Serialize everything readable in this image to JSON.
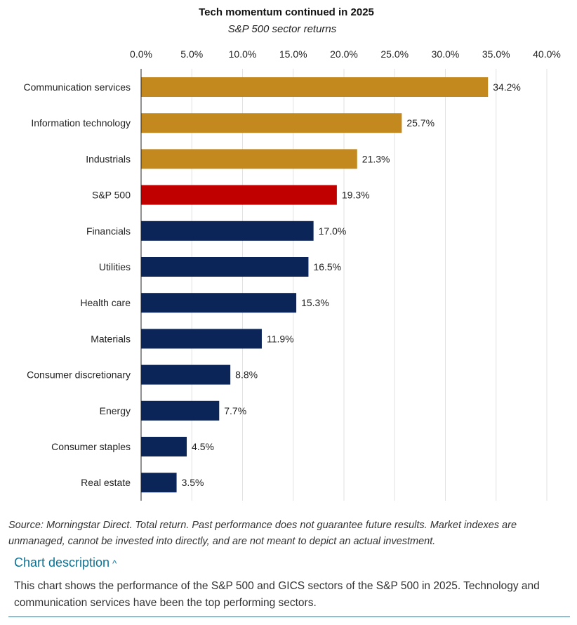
{
  "chart_data": {
    "type": "bar",
    "orientation": "horizontal",
    "title": "Tech momentum continued in 2025",
    "subtitle": "S&P 500 sector returns",
    "xlim": [
      0,
      40
    ],
    "xticks": [
      "0.0%",
      "5.0%",
      "10.0%",
      "15.0%",
      "20.0%",
      "25.0%",
      "30.0%",
      "35.0%",
      "40.0%"
    ],
    "grid": true,
    "categories": [
      "Communication services",
      "Information technology",
      "Industrials",
      "S&P 500",
      "Financials",
      "Utilities",
      "Health care",
      "Materials",
      "Consumer discretionary",
      "Energy",
      "Consumer staples",
      "Real estate"
    ],
    "values": [
      34.2,
      25.7,
      21.3,
      19.3,
      17.0,
      16.5,
      15.3,
      11.9,
      8.8,
      7.7,
      4.5,
      3.5
    ],
    "labels": [
      "34.2%",
      "25.7%",
      "21.3%",
      "19.3%",
      "17.0%",
      "16.5%",
      "15.3%",
      "11.9%",
      "8.8%",
      "7.7%",
      "4.5%",
      "3.5%"
    ],
    "groups": [
      "top",
      "top",
      "top",
      "index",
      "other",
      "other",
      "other",
      "other",
      "other",
      "other",
      "other",
      "other"
    ],
    "colors": {
      "top": "#C4891E",
      "index": "#C00000",
      "other": "#0B2559"
    }
  },
  "footer": {
    "source": "Source: Morningstar Direct. Total return. Past performance does not guarantee future results. Market indexes are unmanaged, cannot be invested into directly, and are not meant to depict an actual investment.",
    "description_toggle": "Chart description",
    "description": "This chart shows the performance of the S&P 500 and GICS sectors of the S&P 500 in 2025. Technology and communication services have been the top performing sectors."
  }
}
